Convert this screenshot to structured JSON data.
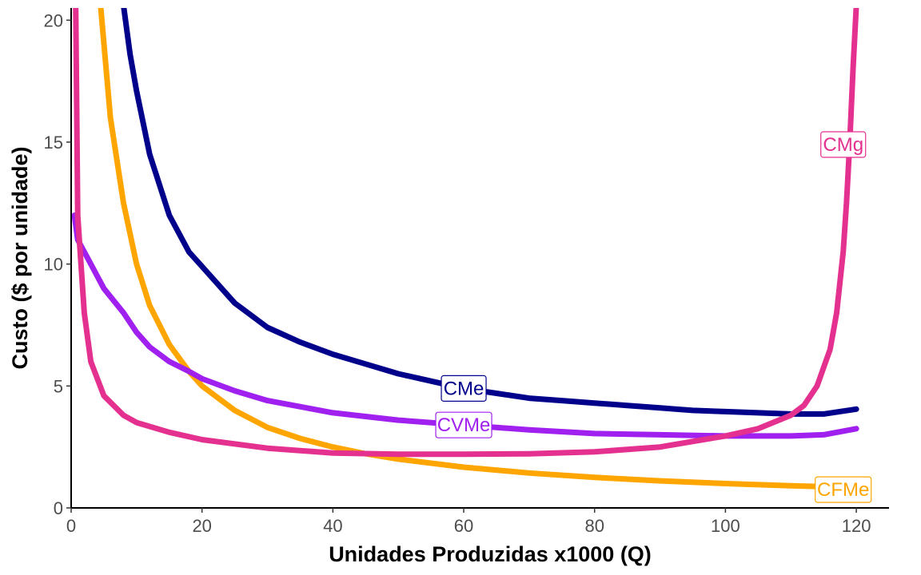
{
  "chart_data": {
    "type": "line",
    "title": "",
    "xlabel": "Unidades Produzidas x1000 (Q)",
    "ylabel": "Custo ($ por unidade)",
    "xlim": [
      0,
      125
    ],
    "ylim": [
      0,
      20.5
    ],
    "x_ticks": [
      0,
      20,
      40,
      60,
      80,
      100,
      120
    ],
    "y_ticks": [
      0,
      5,
      10,
      15,
      20
    ],
    "grid": false,
    "legend": "none (direct labels on curves)",
    "series": [
      {
        "name": "CMe",
        "color": "#00008B",
        "x": [
          8,
          9,
          10,
          12,
          15,
          18,
          20,
          25,
          30,
          35,
          40,
          45,
          50,
          55,
          60,
          65,
          70,
          75,
          80,
          85,
          90,
          95,
          100,
          105,
          110,
          115,
          120
        ],
        "y": [
          20.6,
          18.6,
          17.1,
          14.5,
          12.0,
          10.5,
          9.9,
          8.4,
          7.4,
          6.8,
          6.3,
          5.9,
          5.5,
          5.2,
          4.9,
          4.7,
          4.5,
          4.4,
          4.3,
          4.2,
          4.1,
          4.0,
          3.95,
          3.9,
          3.85,
          3.85,
          4.05
        ]
      },
      {
        "name": "CVMe",
        "color": "#A020F0",
        "x": [
          0.5,
          1,
          2,
          3,
          5,
          8,
          10,
          12,
          15,
          18,
          20,
          25,
          30,
          40,
          50,
          60,
          70,
          80,
          90,
          100,
          110,
          115,
          120
        ],
        "y": [
          12.0,
          11.0,
          10.5,
          10.0,
          9.0,
          8.0,
          7.2,
          6.6,
          6.0,
          5.6,
          5.3,
          4.8,
          4.4,
          3.9,
          3.6,
          3.4,
          3.2,
          3.05,
          3.0,
          2.95,
          2.95,
          3.0,
          3.25
        ]
      },
      {
        "name": "CFMe",
        "color": "#FFA500",
        "x": [
          4.5,
          6,
          8,
          10,
          12,
          15,
          18,
          20,
          25,
          30,
          35,
          40,
          45,
          50,
          60,
          70,
          80,
          90,
          100,
          110,
          115
        ],
        "y": [
          20.6,
          16.0,
          12.5,
          10.0,
          8.3,
          6.7,
          5.6,
          5.0,
          4.0,
          3.3,
          2.85,
          2.5,
          2.22,
          2.0,
          1.67,
          1.43,
          1.25,
          1.11,
          1.0,
          0.91,
          0.87
        ]
      },
      {
        "name": "CMg",
        "color": "#E4308F",
        "x": [
          0.7,
          1,
          2,
          3,
          5,
          8,
          10,
          15,
          20,
          30,
          40,
          50,
          60,
          70,
          80,
          90,
          100,
          105,
          110,
          112,
          114,
          116,
          117,
          118,
          118.5,
          119,
          119.5,
          120
        ],
        "y": [
          20.6,
          12.0,
          8.0,
          6.0,
          4.6,
          3.8,
          3.5,
          3.1,
          2.8,
          2.45,
          2.25,
          2.2,
          2.2,
          2.22,
          2.3,
          2.5,
          2.95,
          3.25,
          3.8,
          4.2,
          5.0,
          6.5,
          8.0,
          10.5,
          12.5,
          15.0,
          18.0,
          20.6
        ]
      }
    ],
    "labels": [
      {
        "text": "CMe",
        "x": 60,
        "y": 4.9,
        "color": "#00008B"
      },
      {
        "text": "CVMe",
        "x": 60,
        "y": 3.4,
        "color": "#A020F0"
      },
      {
        "text": "CFMe",
        "x": 118,
        "y": 0.75,
        "color": "#FFA500"
      },
      {
        "text": "CMg",
        "x": 118,
        "y": 14.9,
        "color": "#E4308F"
      }
    ]
  }
}
